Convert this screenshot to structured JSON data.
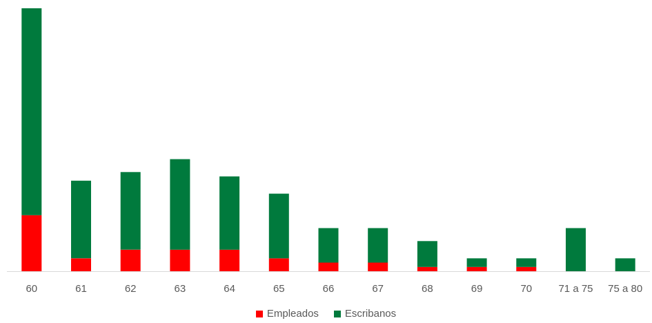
{
  "chart_data": {
    "type": "bar",
    "stacked": true,
    "categories": [
      "60",
      "61",
      "62",
      "63",
      "64",
      "65",
      "66",
      "67",
      "68",
      "69",
      "70",
      "71 a 75",
      "75 a 80"
    ],
    "series": [
      {
        "name": "Empleados",
        "color": "#ff0000",
        "values": [
          13,
          3,
          5,
          5,
          5,
          3,
          2,
          2,
          1,
          1,
          1,
          0,
          0
        ]
      },
      {
        "name": "Escribanos",
        "color": "#007a3d",
        "values": [
          48,
          18,
          18,
          21,
          17,
          15,
          8,
          8,
          6,
          2,
          2,
          10,
          3
        ]
      }
    ],
    "ylim": [
      0,
      61
    ],
    "grid": false,
    "legend_position": "bottom"
  }
}
